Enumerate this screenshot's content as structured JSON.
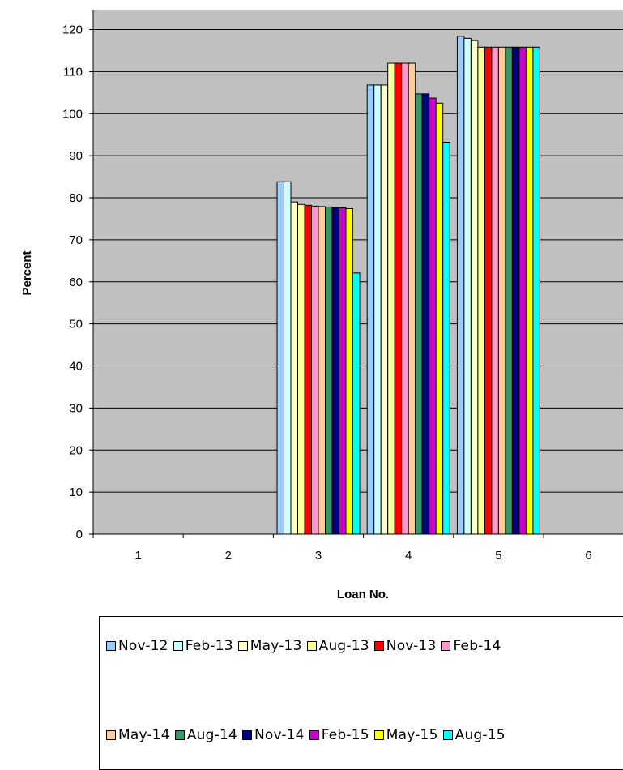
{
  "chart_data": {
    "type": "bar",
    "xlabel": "Loan No.",
    "ylabel": "Percent",
    "categories": [
      "1",
      "2",
      "3",
      "4",
      "5",
      "6"
    ],
    "ylim": [
      0,
      120
    ],
    "yticks": [
      0,
      10,
      20,
      30,
      40,
      50,
      60,
      70,
      80,
      90,
      100,
      110,
      120
    ],
    "grid": true,
    "legend_position": "bottom",
    "plot_background": "#c0c0c0",
    "series": [
      {
        "name": "Nov-12",
        "color": "#99ccff",
        "values": [
          null,
          null,
          83.8,
          106.8,
          118.4,
          null
        ]
      },
      {
        "name": "Feb-13",
        "color": "#ccffff",
        "values": [
          null,
          null,
          83.8,
          106.8,
          117.9,
          null
        ]
      },
      {
        "name": "May-13",
        "color": "#ffffcc",
        "values": [
          null,
          null,
          79.0,
          106.8,
          117.4,
          null
        ]
      },
      {
        "name": "Aug-13",
        "color": "#ffff99",
        "values": [
          null,
          null,
          78.4,
          112.0,
          115.8,
          null
        ]
      },
      {
        "name": "Nov-13",
        "color": "#ff0000",
        "values": [
          null,
          null,
          78.2,
          112.0,
          115.8,
          null
        ]
      },
      {
        "name": "Feb-14",
        "color": "#ff99cc",
        "values": [
          null,
          null,
          78.0,
          112.0,
          115.8,
          null
        ]
      },
      {
        "name": "May-14",
        "color": "#ffcc99",
        "values": [
          null,
          null,
          77.9,
          112.0,
          115.8,
          null
        ]
      },
      {
        "name": "Aug-14",
        "color": "#339966",
        "values": [
          null,
          null,
          77.8,
          104.7,
          115.8,
          null
        ]
      },
      {
        "name": "Nov-14",
        "color": "#000080",
        "values": [
          null,
          null,
          77.7,
          104.7,
          115.8,
          null
        ]
      },
      {
        "name": "Feb-15",
        "color": "#cc00cc",
        "values": [
          null,
          null,
          77.6,
          103.7,
          115.8,
          null
        ]
      },
      {
        "name": "May-15",
        "color": "#ffff00",
        "values": [
          null,
          null,
          77.4,
          102.5,
          115.8,
          null
        ]
      },
      {
        "name": "Aug-15",
        "color": "#00ffff",
        "values": [
          null,
          null,
          62.1,
          93.2,
          115.8,
          null
        ]
      }
    ]
  }
}
